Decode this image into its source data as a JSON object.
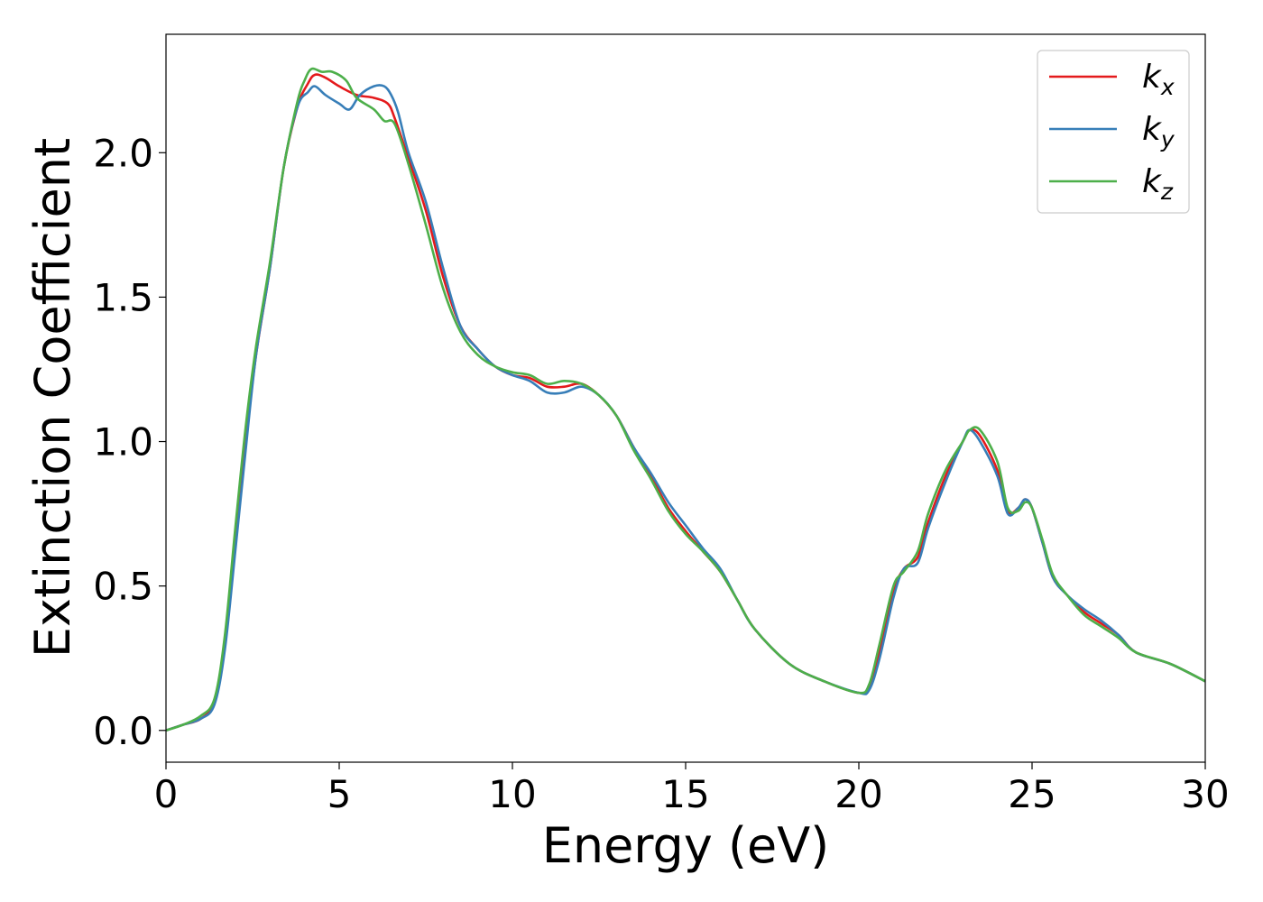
{
  "chart_data": {
    "type": "line",
    "title": "",
    "xlabel": "Energy (eV)",
    "ylabel": "Extinction Coefficient",
    "xlim": [
      0,
      30
    ],
    "ylim": [
      -0.11,
      2.41
    ],
    "xticks": [
      0,
      5,
      10,
      15,
      20,
      25,
      30
    ],
    "xtick_labels": [
      "0",
      "5",
      "10",
      "15",
      "20",
      "25",
      "30"
    ],
    "yticks": [
      0.0,
      0.5,
      1.0,
      1.5,
      2.0
    ],
    "ytick_labels": [
      "0.0",
      "0.5",
      "1.0",
      "1.5",
      "2.0"
    ],
    "grid": false,
    "legend_position": "top-right",
    "series": [
      {
        "name": "k",
        "subscript": "x",
        "color": "#e41a1c",
        "x": [
          0,
          0.5,
          1.0,
          1.4,
          1.7,
          2.0,
          2.3,
          2.6,
          3.0,
          3.4,
          3.8,
          4.1,
          4.3,
          4.6,
          5.0,
          5.5,
          6.0,
          6.4,
          6.6,
          7.0,
          7.5,
          8.0,
          8.5,
          9.0,
          9.5,
          10.0,
          10.5,
          11.0,
          11.5,
          12.0,
          12.5,
          13.0,
          13.5,
          14.0,
          14.5,
          15.0,
          15.5,
          16.0,
          16.5,
          17.0,
          18.0,
          19.0,
          20.0,
          20.3,
          20.6,
          21.0,
          21.3,
          21.7,
          22.0,
          22.5,
          23.0,
          23.2,
          23.5,
          24.0,
          24.3,
          24.6,
          24.8,
          25.0,
          25.3,
          25.6,
          26.0,
          26.5,
          27.0,
          27.5,
          28.0,
          29.0,
          30.0
        ],
        "y": [
          0,
          0.02,
          0.04,
          0.1,
          0.3,
          0.65,
          1.0,
          1.3,
          1.6,
          1.95,
          2.16,
          2.24,
          2.27,
          2.26,
          2.23,
          2.2,
          2.19,
          2.17,
          2.12,
          1.98,
          1.8,
          1.57,
          1.4,
          1.32,
          1.26,
          1.23,
          1.22,
          1.19,
          1.19,
          1.2,
          1.16,
          1.09,
          0.98,
          0.88,
          0.77,
          0.69,
          0.62,
          0.55,
          0.45,
          0.35,
          0.23,
          0.17,
          0.13,
          0.15,
          0.27,
          0.48,
          0.56,
          0.6,
          0.72,
          0.88,
          1.0,
          1.04,
          1.02,
          0.9,
          0.76,
          0.77,
          0.8,
          0.77,
          0.65,
          0.53,
          0.47,
          0.41,
          0.37,
          0.33,
          0.27,
          0.23,
          0.17
        ]
      },
      {
        "name": "k",
        "subscript": "y",
        "color": "#377eb8",
        "x": [
          0,
          0.5,
          1.0,
          1.4,
          1.7,
          2.0,
          2.3,
          2.6,
          3.0,
          3.4,
          3.8,
          4.1,
          4.3,
          4.6,
          5.0,
          5.3,
          5.6,
          6.0,
          6.3,
          6.5,
          6.7,
          7.0,
          7.5,
          8.0,
          8.5,
          9.0,
          9.5,
          10.0,
          10.5,
          11.0,
          11.5,
          12.0,
          12.5,
          13.0,
          13.5,
          14.0,
          14.5,
          15.0,
          15.5,
          16.0,
          16.5,
          17.0,
          18.0,
          19.0,
          20.0,
          20.3,
          20.6,
          21.0,
          21.3,
          21.7,
          22.0,
          22.5,
          23.0,
          23.2,
          23.5,
          24.0,
          24.3,
          24.6,
          24.8,
          25.0,
          25.3,
          25.6,
          26.0,
          26.5,
          27.0,
          27.5,
          28.0,
          29.0,
          30.0
        ],
        "y": [
          0,
          0.02,
          0.04,
          0.09,
          0.28,
          0.62,
          0.97,
          1.3,
          1.6,
          1.95,
          2.16,
          2.21,
          2.23,
          2.2,
          2.17,
          2.15,
          2.2,
          2.23,
          2.23,
          2.2,
          2.14,
          2.0,
          1.83,
          1.6,
          1.4,
          1.32,
          1.26,
          1.23,
          1.21,
          1.17,
          1.17,
          1.19,
          1.16,
          1.09,
          0.98,
          0.89,
          0.79,
          0.71,
          0.63,
          0.56,
          0.45,
          0.35,
          0.23,
          0.17,
          0.13,
          0.14,
          0.25,
          0.46,
          0.56,
          0.58,
          0.7,
          0.86,
          1.0,
          1.04,
          1.0,
          0.88,
          0.75,
          0.77,
          0.8,
          0.77,
          0.65,
          0.53,
          0.47,
          0.42,
          0.38,
          0.33,
          0.27,
          0.23,
          0.17
        ]
      },
      {
        "name": "k",
        "subscript": "z",
        "color": "#4daf4a",
        "x": [
          0,
          0.5,
          1.0,
          1.4,
          1.7,
          2.0,
          2.3,
          2.6,
          3.0,
          3.4,
          3.8,
          4.0,
          4.2,
          4.5,
          4.8,
          5.2,
          5.5,
          6.0,
          6.3,
          6.6,
          7.0,
          7.5,
          8.0,
          8.5,
          9.0,
          9.5,
          10.0,
          10.5,
          11.0,
          11.5,
          12.0,
          12.5,
          13.0,
          13.5,
          14.0,
          14.5,
          15.0,
          15.5,
          16.0,
          16.5,
          17.0,
          18.0,
          19.0,
          20.0,
          20.3,
          20.6,
          21.0,
          21.3,
          21.7,
          22.0,
          22.5,
          23.0,
          23.2,
          23.5,
          24.0,
          24.3,
          24.6,
          24.8,
          25.0,
          25.3,
          25.6,
          26.0,
          26.5,
          27.0,
          27.5,
          28.0,
          29.0,
          30.0
        ],
        "y": [
          0,
          0.02,
          0.05,
          0.11,
          0.33,
          0.7,
          1.05,
          1.33,
          1.62,
          1.95,
          2.18,
          2.25,
          2.29,
          2.28,
          2.28,
          2.25,
          2.19,
          2.15,
          2.11,
          2.1,
          1.96,
          1.75,
          1.53,
          1.38,
          1.3,
          1.26,
          1.24,
          1.23,
          1.2,
          1.21,
          1.2,
          1.16,
          1.09,
          0.97,
          0.87,
          0.76,
          0.68,
          0.62,
          0.55,
          0.45,
          0.35,
          0.23,
          0.17,
          0.13,
          0.16,
          0.3,
          0.5,
          0.55,
          0.62,
          0.75,
          0.9,
          1.0,
          1.04,
          1.04,
          0.93,
          0.77,
          0.76,
          0.79,
          0.77,
          0.66,
          0.54,
          0.47,
          0.4,
          0.36,
          0.32,
          0.27,
          0.23,
          0.17
        ]
      }
    ]
  }
}
